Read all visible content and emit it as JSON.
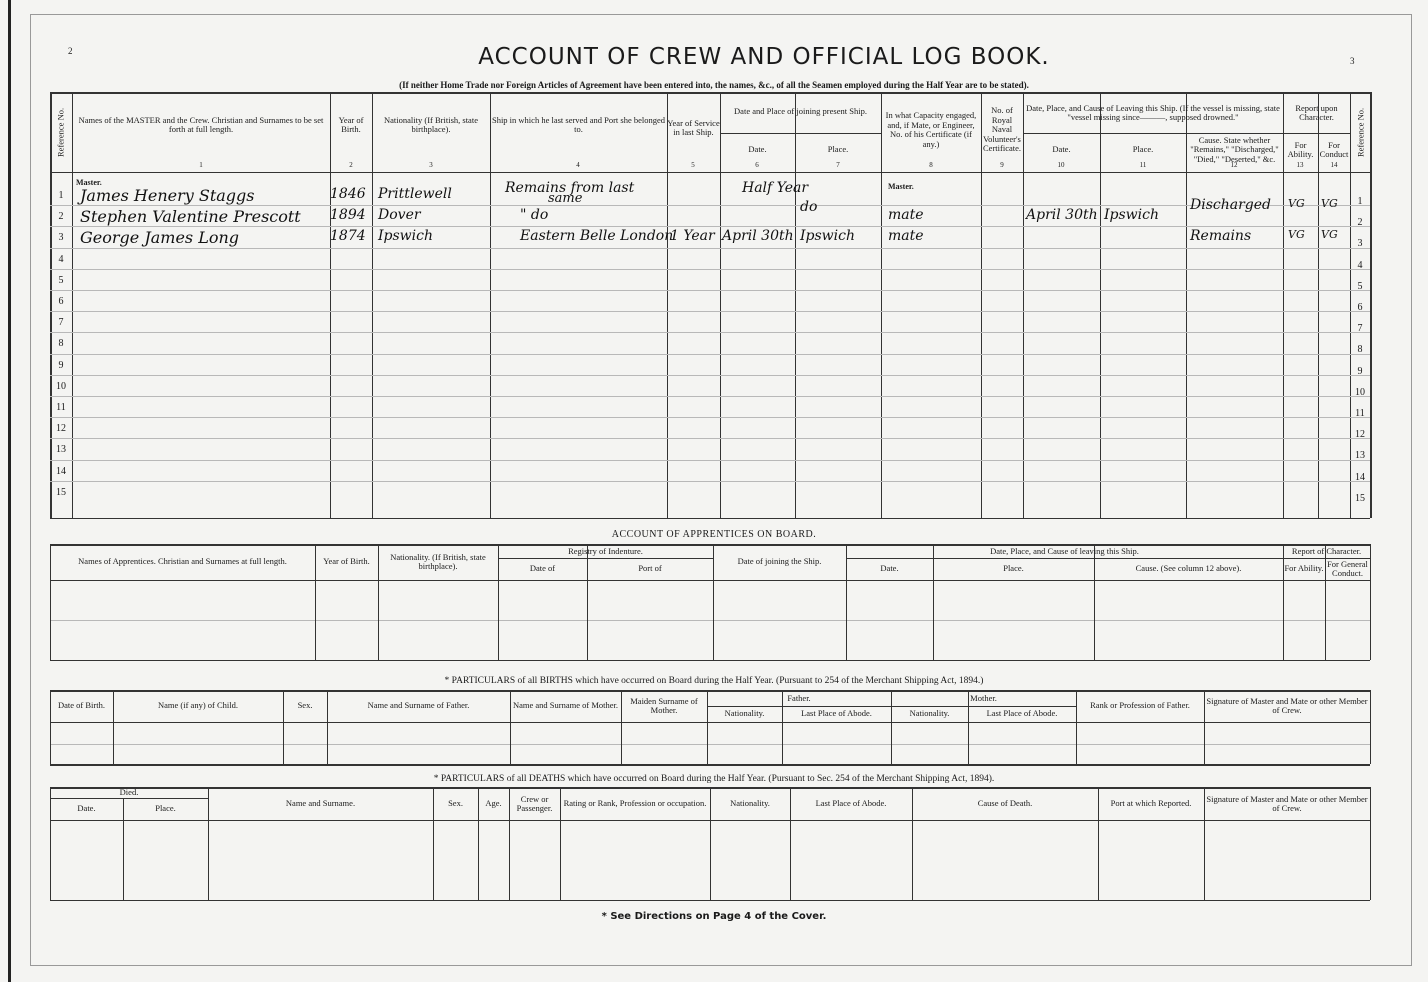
{
  "page_numbers": {
    "left": "2",
    "right": "3"
  },
  "title": "ACCOUNT OF CREW AND OFFICIAL LOG BOOK.",
  "subtitle": "(If neither Home Trade nor Foreign Articles of Agreement have been entered into, the names, &c., of all the Seamen employed during the Half Year are to be stated).",
  "crew": {
    "headers": {
      "ref": "Reference No.",
      "c1": "Names of the MASTER and the Crew. Christian and Surnames to be set forth at full length.",
      "c2": "Year of Birth.",
      "c3": "Nationality (If British, state birthplace).",
      "c4": "Ship in which he last served and Port she belonged to.",
      "c5": "Year of Service in last Ship.",
      "c67": "Date and Place of joining present Ship.",
      "c6": "Date.",
      "c7": "Place.",
      "c8": "In what Capacity engaged, and, if Mate, or Engineer, No. of his Certificate (if any.)",
      "c9": "No. of Royal Naval Volunteer's Certificate.",
      "c1012": "Date, Place, and Cause of Leaving this Ship. (If the vessel is missing, state \"vessel missing since———, supposed drowned.\"",
      "c10": "Date.",
      "c11": "Place.",
      "c12": "Cause. State whether \"Remains,\" \"Discharged,\" \"Died,\" \"Deserted,\" &c.",
      "c1314": "Report upon Character.",
      "c13": "For Ability.",
      "c14": "For Conduct"
    },
    "col_numbers": [
      "1",
      "2",
      "3",
      "4",
      "5",
      "6",
      "7",
      "8",
      "9",
      "10",
      "11",
      "12",
      "13",
      "14"
    ],
    "master_label": "Master.",
    "row_numbers": [
      "1",
      "2",
      "3",
      "4",
      "5",
      "6",
      "7",
      "8",
      "9",
      "10",
      "11",
      "12",
      "13",
      "14",
      "15"
    ],
    "entries": [
      {
        "name": "James Henery Staggs",
        "year": "1846",
        "nationality": "Prittlewell",
        "last_ship": "Remains from last",
        "last_ship_2": "same",
        "service": "",
        "join_date": "Half Year",
        "join_place": "",
        "capacity": "Master.",
        "leave_date": "",
        "leave_place": "",
        "cause": "",
        "ability": "",
        "conduct": ""
      },
      {
        "name": "Stephen Valentine Prescott",
        "year": "1894",
        "nationality": "Dover",
        "last_ship": "\"    do",
        "service": "",
        "join_date": "",
        "join_place": "do",
        "capacity": "mate",
        "leave_date": "April 30th",
        "leave_place": "Ipswich",
        "cause": "Discharged",
        "ability": "VG",
        "conduct": "VG"
      },
      {
        "name": "George James Long",
        "year": "1874",
        "nationality": "Ipswich",
        "last_ship": "Eastern Belle London",
        "service": "1 Year",
        "join_date": "April 30th",
        "join_place": "Ipswich",
        "capacity": "mate",
        "leave_date": "",
        "leave_place": "",
        "cause": "Remains",
        "ability": "VG",
        "conduct": "VG"
      }
    ]
  },
  "apprentices": {
    "title": "ACCOUNT OF APPRENTICES ON BOARD.",
    "headers": {
      "name": "Names of Apprentices. Christian and Surnames at full length.",
      "year": "Year of Birth.",
      "nationality": "Nationality. (If British, state birthplace).",
      "registry": "Registry of Indenture.",
      "date_of": "Date of",
      "port_of": "Port of",
      "joining": "Date of joining the Ship.",
      "leaving": "Date, Place, and Cause of leaving this Ship.",
      "date": "Date.",
      "place": "Place.",
      "cause": "Cause. (See column 12 above).",
      "report": "Report of Character.",
      "ability": "For Ability.",
      "conduct": "For General Conduct."
    }
  },
  "births": {
    "title": "* PARTICULARS of all BIRTHS which have occurred on Board during the Half Year.     (Pursuant to 254 of the Merchant Shipping Act, 1894.)",
    "headers": {
      "date": "Date of Birth.",
      "child": "Name (if any) of Child.",
      "sex": "Sex.",
      "father_name": "Name and Surname of Father.",
      "mother_name": "Name and Surname of Mother.",
      "maiden": "Maiden Surname of Mother.",
      "father": "Father.",
      "f_nat": "Nationality.",
      "f_abode": "Last Place of Abode.",
      "mother": "Mother.",
      "m_nat": "Nationality.",
      "m_abode": "Last Place of Abode.",
      "rank": "Rank or Profession of Father.",
      "signature": "Signature of Master and Mate or other Member of Crew."
    }
  },
  "deaths": {
    "title": "* PARTICULARS of all DEATHS which have occurred on Board during the Half Year.     (Pursuant to Sec. 254 of the Merchant Shipping Act, 1894).",
    "headers": {
      "died": "Died.",
      "date": "Date.",
      "place": "Place.",
      "name": "Name and Surname.",
      "sex": "Sex.",
      "age": "Age.",
      "crew": "Crew or Passenger.",
      "rating": "Rating or Rank, Profession or occupation.",
      "nationality": "Nationality.",
      "abode": "Last Place of Abode.",
      "cause": "Cause of Death.",
      "port": "Port at which Reported.",
      "signature": "Signature of Master and Mate or other Member of Crew."
    }
  },
  "footer": "* See Directions on Page 4 of the Cover."
}
